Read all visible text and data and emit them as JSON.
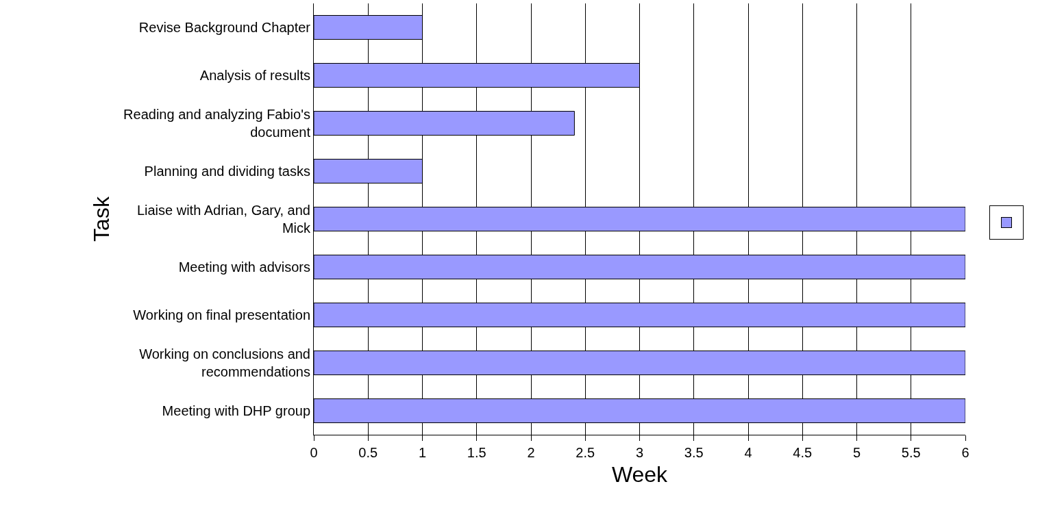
{
  "chart_data": {
    "type": "bar",
    "orientation": "horizontal",
    "xlabel": "Week",
    "ylabel": "Task",
    "categories": [
      "Revise Background Chapter",
      "Analysis of results",
      "Reading and analyzing Fabio's document",
      "Planning and dividing tasks",
      "Liaise with Adrian, Gary, and Mick",
      "Meeting with advisors",
      "Working on final presentation",
      "Working on conclusions and recommendations",
      "Meeting with DHP group"
    ],
    "series": [
      {
        "color": "#9999ff",
        "values": [
          1,
          3,
          2.4,
          1,
          6,
          6,
          6,
          6,
          6
        ]
      }
    ],
    "xlim": [
      0,
      6
    ],
    "xticks": [
      0,
      0.5,
      1,
      1.5,
      2,
      2.5,
      3,
      3.5,
      4,
      4.5,
      5,
      5.5,
      6
    ],
    "grid": "x"
  }
}
